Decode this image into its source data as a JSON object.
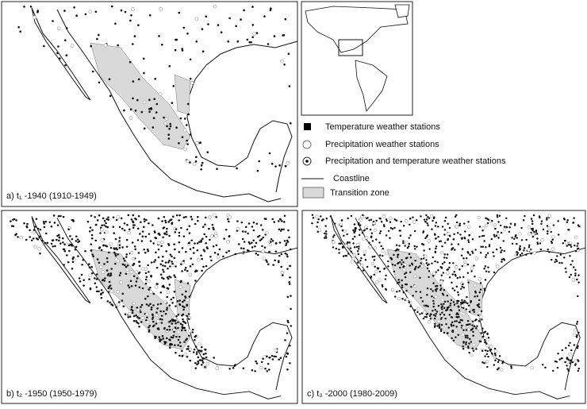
{
  "panels": [
    {
      "label": "a) t₁ -1940 (1910-1949)"
    },
    {
      "label": "b) t₂ -1950 (1950-1979)"
    },
    {
      "label": "c) t₃ -2000 (1980-2009)"
    }
  ],
  "legend": [
    "Temperature weather stations",
    "Precipitation weather stations",
    "Precipitation and temperature weather stations",
    "Coastline",
    "Transition zone"
  ]
}
